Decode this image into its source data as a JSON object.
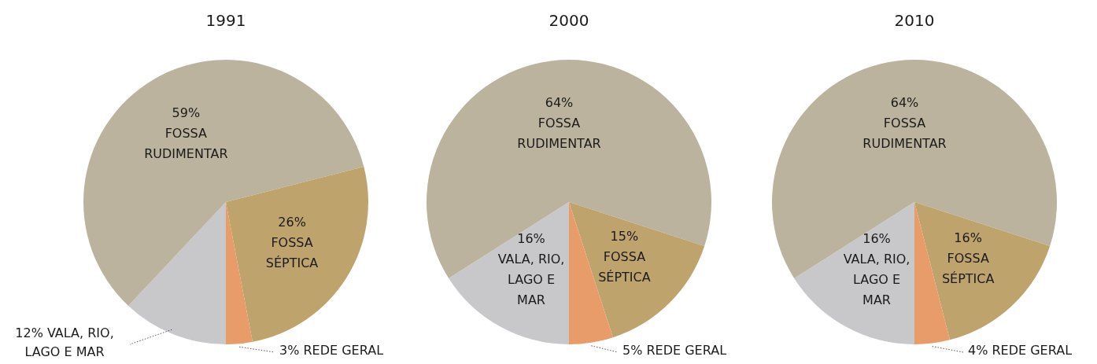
{
  "chart_data": [
    {
      "type": "pie",
      "title": "1991",
      "categories": [
        "VALA, RIO, LAGO E MAR",
        "FOSSA RUDIMENTAR",
        "FOSSA SÉPTICA",
        "REDE GERAL"
      ],
      "values": [
        12,
        59,
        26,
        3
      ],
      "value_labels": [
        "12%",
        "59%",
        "26%",
        "3%"
      ],
      "colors": [
        "#c8c8ca",
        "#bbb39d",
        "#bfa36c",
        "#e89c6a"
      ]
    },
    {
      "type": "pie",
      "title": "2000",
      "categories": [
        "VALA, RIO, LAGO E MAR",
        "FOSSA RUDIMENTAR",
        "FOSSA SÉPTICA",
        "REDE GERAL"
      ],
      "values": [
        16,
        64,
        15,
        5
      ],
      "value_labels": [
        "16%",
        "64%",
        "15%",
        "5%"
      ],
      "colors": [
        "#c8c8ca",
        "#bbb39d",
        "#bfa36c",
        "#e89c6a"
      ]
    },
    {
      "type": "pie",
      "title": "2010",
      "categories": [
        "VALA, RIO, LAGO E MAR",
        "FOSSA RUDIMENTAR",
        "FOSSA SÉPTICA",
        "REDE GERAL"
      ],
      "values": [
        16,
        64,
        16,
        4
      ],
      "value_labels": [
        "16%",
        "64%",
        "16%",
        "4%"
      ],
      "colors": [
        "#c8c8ca",
        "#bbb39d",
        "#bfa36c",
        "#e89c6a"
      ]
    }
  ]
}
